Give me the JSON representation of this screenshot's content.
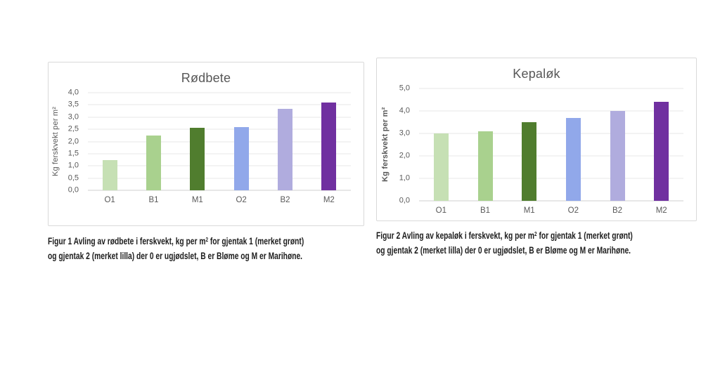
{
  "chart_data": [
    {
      "type": "bar",
      "title": "Rødbete",
      "ylabel": "Kg ferskvekt per m²",
      "ylabel_bold": false,
      "xlabel": "",
      "categories": [
        "O1",
        "B1",
        "M1",
        "O2",
        "B2",
        "M2"
      ],
      "values": [
        1.25,
        2.25,
        2.55,
        2.6,
        3.35,
        3.6
      ],
      "ylim": [
        0,
        4
      ],
      "ytick_step": 0.5,
      "ytick_labels_bottom_up": [
        "0,0",
        "0,5",
        "1,0",
        "1,5",
        "2,0",
        "2,5",
        "3,0",
        "3,5",
        "4,0"
      ],
      "bar_colors": [
        "#c6e0b4",
        "#a9d18e",
        "#507d2e",
        "#91a8ea",
        "#b0acde",
        "#7030a0"
      ],
      "grid": true,
      "legend": "none"
    },
    {
      "type": "bar",
      "title": "Kepaløk",
      "ylabel": "Kg ferskvekt per m²",
      "ylabel_bold": true,
      "xlabel": "",
      "categories": [
        "O1",
        "B1",
        "M1",
        "O2",
        "B2",
        "M2"
      ],
      "values": [
        3.0,
        3.1,
        3.5,
        3.7,
        4.0,
        4.4
      ],
      "ylim": [
        0,
        5
      ],
      "ytick_step": 1.0,
      "ytick_labels_bottom_up": [
        "0,0",
        "1,0",
        "2,0",
        "3,0",
        "4,0",
        "5,0"
      ],
      "bar_colors": [
        "#c6e0b4",
        "#a9d18e",
        "#507d2e",
        "#91a8ea",
        "#b0acde",
        "#7030a0"
      ],
      "grid": true,
      "legend": "none"
    }
  ],
  "captions": [
    {
      "line1_before_sup": "Figur 1 Avling av rødbete i ferskvekt, kg per m",
      "sup": "2",
      "line1_after_sup": " for gjentak 1 (merket grønt)",
      "line2": "og gjentak 2 (merket lilla) der 0 er ugjødslet, B er Bløme og M er Marihøne."
    },
    {
      "line1_before_sup": "Figur 2 Avling av kepaløk i ferskvekt, kg per m",
      "sup": "2",
      "line1_after_sup": " for gjentak 1 (merket grønt)",
      "line2": "og gjentak 2 (merket lilla) der 0 er ugjødslet, B er Bløme og M er Marihøne."
    }
  ]
}
